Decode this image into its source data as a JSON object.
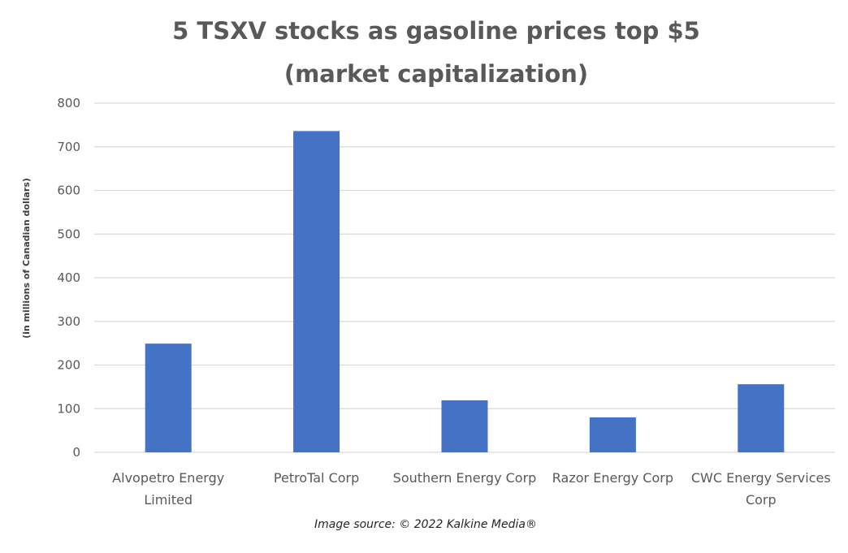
{
  "chart_data": {
    "type": "bar",
    "title": "5 TSXV stocks as gasoline prices top $5",
    "subtitle": "(market capitalization)",
    "xlabel": "",
    "ylabel": "(in millions of Canadian dollars)",
    "categories": [
      "Alvopetro Energy Limited",
      "PetroTal Corp",
      "Southern Energy Corp",
      "Razor Energy Corp",
      "CWC Energy Services Corp"
    ],
    "category_lines": [
      [
        "Alvopetro Energy",
        "Limited"
      ],
      [
        "PetroTal Corp"
      ],
      [
        "Southern Energy Corp"
      ],
      [
        "Razor Energy Corp"
      ],
      [
        "CWC Energy Services",
        "Corp"
      ]
    ],
    "values": [
      249,
      736,
      119,
      80,
      156
    ],
    "ylim": [
      0,
      800
    ],
    "yticks": [
      0,
      100,
      200,
      300,
      400,
      500,
      600,
      700,
      800
    ],
    "grid": true,
    "legend": "none",
    "bar_color": "#4472C4",
    "grid_color": "#d9d9d9"
  },
  "source_note": "Image source: © 2022 Kalkine Media®"
}
